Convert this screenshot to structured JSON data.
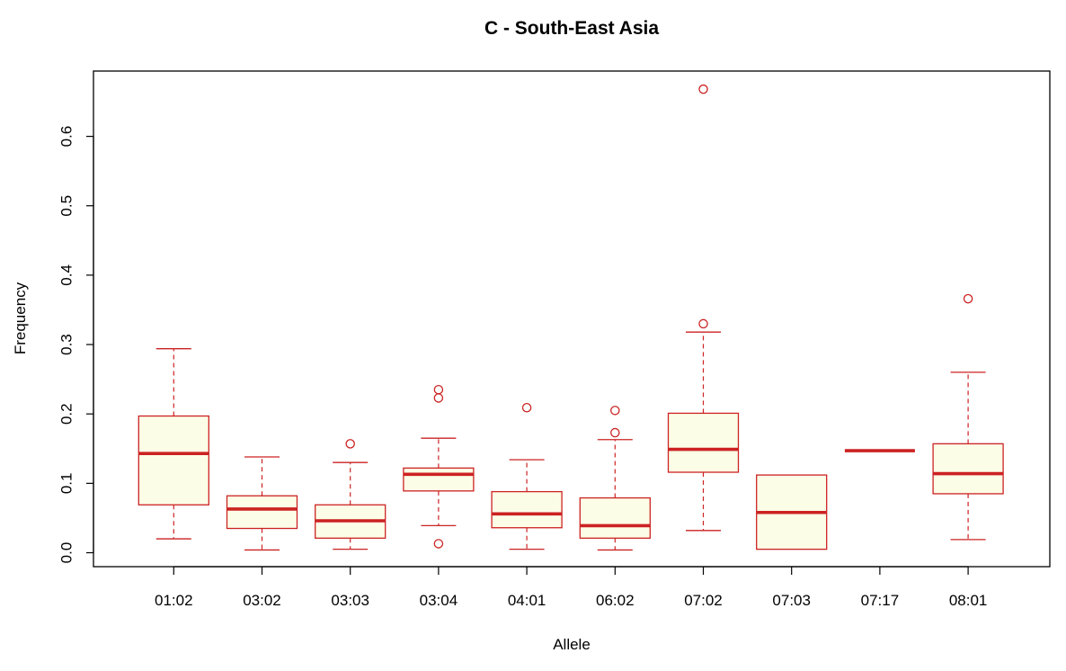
{
  "chart_data": {
    "type": "boxplot",
    "title": "C - South-East Asia",
    "xlabel": "Allele",
    "ylabel": "Frequency",
    "ylim": [
      0,
      0.68
    ],
    "y_ticks": [
      "0.0",
      "0.1",
      "0.2",
      "0.3",
      "0.4",
      "0.5",
      "0.6"
    ],
    "y_tick_values": [
      0,
      0.1,
      0.2,
      0.3,
      0.4,
      0.5,
      0.6
    ],
    "grid": false,
    "colors": {
      "stroke": "#cc2222",
      "fill": "#fcfde6",
      "median": "#cc2222"
    },
    "categories": [
      "01:02",
      "03:02",
      "03:03",
      "03:04",
      "04:01",
      "06:02",
      "07:02",
      "07:03",
      "07:17",
      "08:01"
    ],
    "boxes": [
      {
        "category": "01:02",
        "whisker_low": 0.02,
        "q1": 0.069,
        "median": 0.143,
        "q3": 0.197,
        "whisker_high": 0.294,
        "outliers": []
      },
      {
        "category": "03:02",
        "whisker_low": 0.004,
        "q1": 0.035,
        "median": 0.063,
        "q3": 0.082,
        "whisker_high": 0.138,
        "outliers": []
      },
      {
        "category": "03:03",
        "whisker_low": 0.005,
        "q1": 0.021,
        "median": 0.046,
        "q3": 0.069,
        "whisker_high": 0.13,
        "outliers": [
          0.157
        ]
      },
      {
        "category": "03:04",
        "whisker_low": 0.039,
        "q1": 0.089,
        "median": 0.113,
        "q3": 0.122,
        "whisker_high": 0.165,
        "outliers": [
          0.013,
          0.223,
          0.235
        ]
      },
      {
        "category": "04:01",
        "whisker_low": 0.005,
        "q1": 0.036,
        "median": 0.056,
        "q3": 0.088,
        "whisker_high": 0.134,
        "outliers": [
          0.209
        ]
      },
      {
        "category": "06:02",
        "whisker_low": 0.004,
        "q1": 0.021,
        "median": 0.039,
        "q3": 0.079,
        "whisker_high": 0.163,
        "outliers": [
          0.173,
          0.205
        ]
      },
      {
        "category": "07:02",
        "whisker_low": 0.032,
        "q1": 0.116,
        "median": 0.149,
        "q3": 0.201,
        "whisker_high": 0.318,
        "outliers": [
          0.33,
          0.668
        ]
      },
      {
        "category": "07:03",
        "whisker_low": 0.005,
        "q1": 0.005,
        "median": 0.058,
        "q3": 0.112,
        "whisker_high": 0.112,
        "outliers": []
      },
      {
        "category": "07:17",
        "whisker_low": 0.147,
        "q1": 0.147,
        "median": 0.147,
        "q3": 0.147,
        "whisker_high": 0.147,
        "outliers": []
      },
      {
        "category": "08:01",
        "whisker_low": 0.019,
        "q1": 0.085,
        "median": 0.114,
        "q3": 0.157,
        "whisker_high": 0.26,
        "outliers": [
          0.366
        ]
      }
    ]
  }
}
